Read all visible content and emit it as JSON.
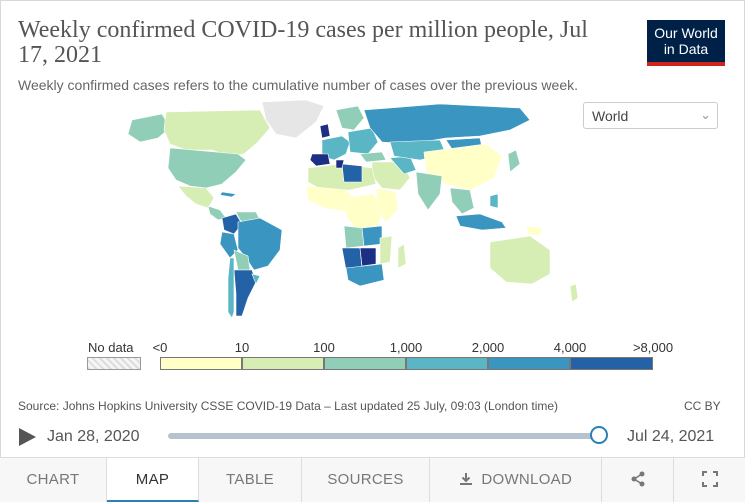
{
  "header": {
    "title": "Weekly confirmed COVID-19 cases per million people, Jul 17, 2021",
    "subtitle": "Weekly confirmed cases refers to the cumulative number of cases over the previous week.",
    "logo_line1": "Our World",
    "logo_line2": "in Data",
    "logo_colors": {
      "background": "#002147",
      "underline": "#ce261e"
    }
  },
  "region_select": {
    "value": "World",
    "chevron": "chevron-down-icon"
  },
  "legend": {
    "no_data_label": "No data",
    "ticks": [
      "<0",
      "10",
      "100",
      "1,000",
      "2,000",
      "4,000",
      ">8,000"
    ],
    "colors": [
      "#ffffc7",
      "#d6edb3",
      "#91ceb8",
      "#5ab6c4",
      "#3a95c0",
      "#2462a8",
      "#1c2f85"
    ]
  },
  "footer": {
    "source": "Source: Johns Hopkins University CSSE COVID-19 Data – Last updated 25 July, 09:03 (London time)",
    "license": "CC BY"
  },
  "timeline": {
    "start_label": "Jan 28, 2020",
    "end_label": "Jul 24, 2021",
    "position": 1.0,
    "play_icon": "play-icon"
  },
  "tabs": [
    {
      "label": "CHART",
      "active": false
    },
    {
      "label": "MAP",
      "active": true
    },
    {
      "label": "TABLE",
      "active": false
    },
    {
      "label": "SOURCES",
      "active": false
    },
    {
      "label": "DOWNLOAD",
      "active": false,
      "icon": "download-icon"
    }
  ],
  "tab_icons": [
    "share-icon",
    "fullscreen-icon"
  ]
}
